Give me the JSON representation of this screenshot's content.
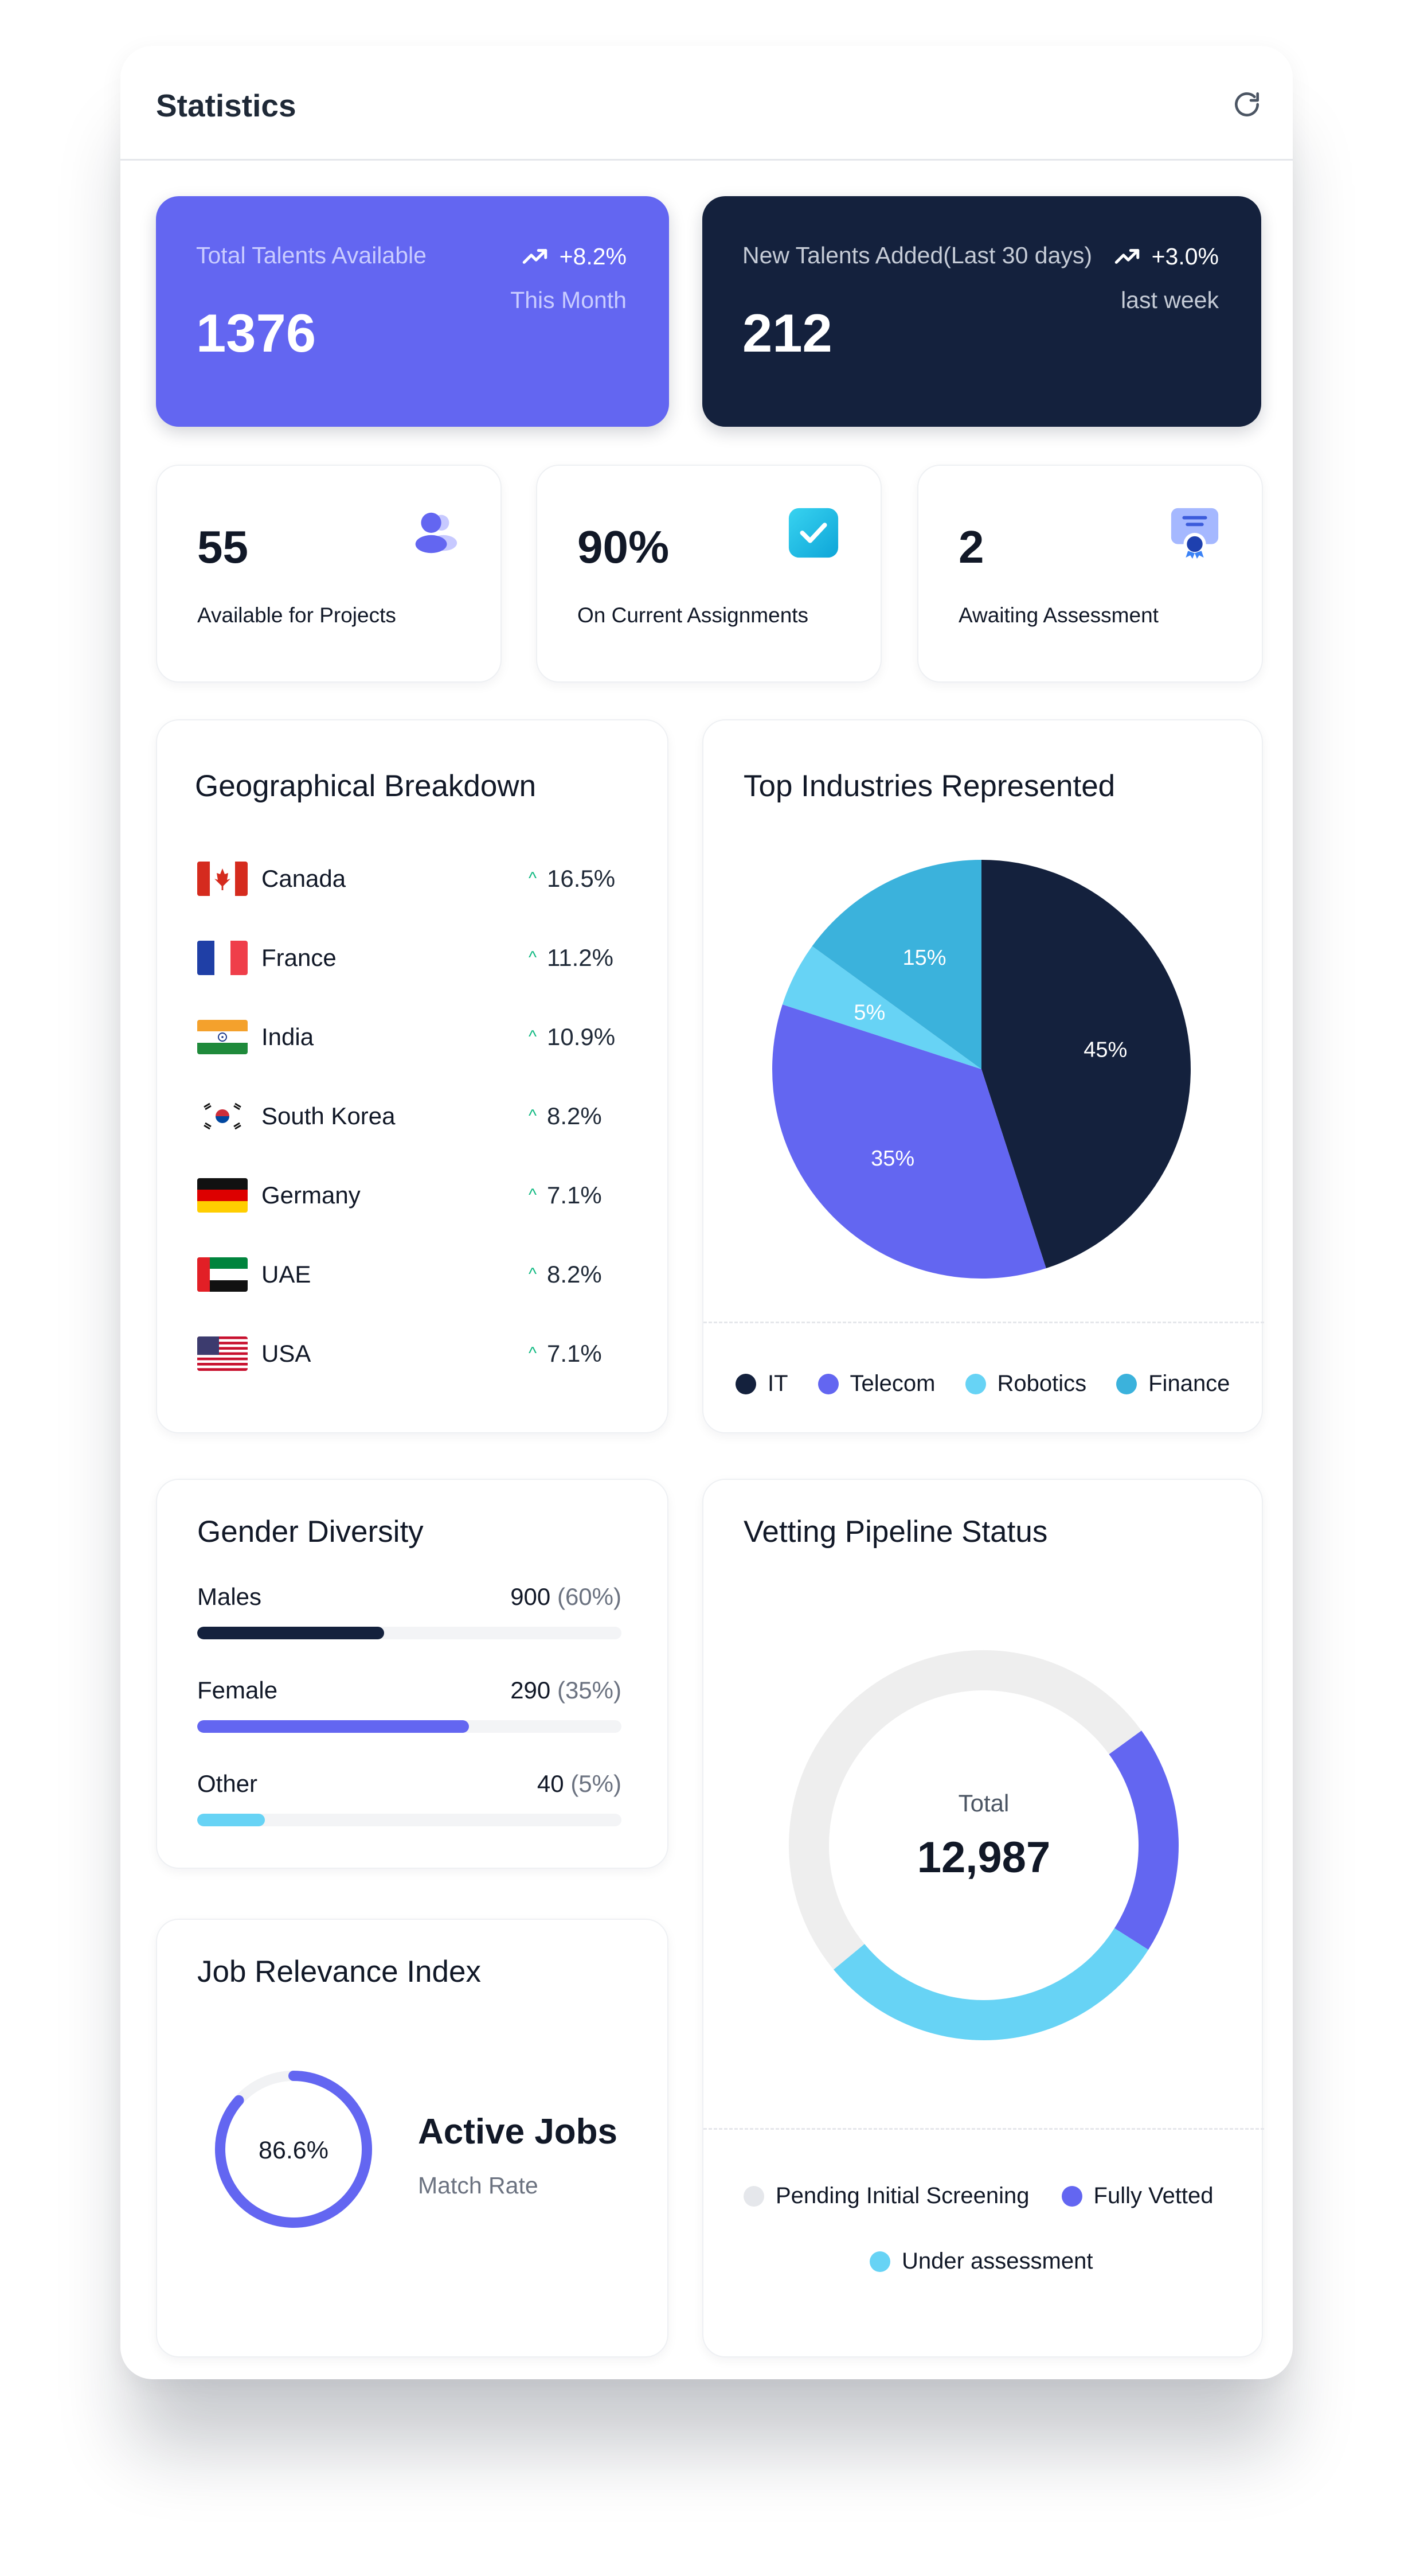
{
  "header": {
    "title": "Statistics",
    "refresh_icon": "refresh-icon"
  },
  "summary": [
    {
      "label": "Total Talents Available",
      "value": "1376",
      "delta": "+8.2%",
      "period": "This Month",
      "bg": "#6366f1",
      "icon": "trending-up-icon"
    },
    {
      "label": "New Talents Added(Last 30 days)",
      "value": "212",
      "delta": "+3.0%",
      "period": "last week",
      "bg": "#14213d",
      "icon": "trending-up-icon"
    }
  ],
  "stats": [
    {
      "value": "55",
      "label": "Available for Projects",
      "icon": "users-icon"
    },
    {
      "value": "90%",
      "label": "On Current Assignments",
      "icon": "check-badge-icon"
    },
    {
      "value": "2",
      "label": "Awaiting Assessment",
      "icon": "certificate-icon"
    }
  ],
  "geo": {
    "title": "Geographical Breakdown",
    "rows": [
      {
        "country": "Canada",
        "pct": "16.5%",
        "flag": "canada-flag-icon"
      },
      {
        "country": "France",
        "pct": "11.2%",
        "flag": "france-flag-icon"
      },
      {
        "country": "India",
        "pct": "10.9%",
        "flag": "india-flag-icon"
      },
      {
        "country": "South Korea",
        "pct": "8.2%",
        "flag": "south-korea-flag-icon"
      },
      {
        "country": "Germany",
        "pct": "7.1%",
        "flag": "germany-flag-icon"
      },
      {
        "country": "UAE",
        "pct": "8.2%",
        "flag": "uae-flag-icon"
      },
      {
        "country": "USA",
        "pct": "7.1%",
        "flag": "usa-flag-icon"
      }
    ]
  },
  "industries": {
    "title": "Top Industries Represented",
    "legend": [
      {
        "name": "IT",
        "color": "#14213d"
      },
      {
        "name": "Telecom",
        "color": "#6366f1"
      },
      {
        "name": "Robotics",
        "color": "#67d3f5"
      },
      {
        "name": "Finance",
        "color": "#3bb2dc"
      }
    ]
  },
  "gender": {
    "title": "Gender Diversity",
    "rows": [
      {
        "label": "Males",
        "count": "900",
        "pct": "(60%)",
        "fill": 0.44,
        "color": "#14213d"
      },
      {
        "label": "Female",
        "count": "290",
        "pct": "(35%)",
        "fill": 0.64,
        "color": "#6366f1"
      },
      {
        "label": "Other",
        "count": "40",
        "pct": "(5%)",
        "fill": 0.16,
        "color": "#67d3f5"
      }
    ]
  },
  "relevance": {
    "title": "Job Relevance Index",
    "value": "86.6%",
    "fraction": 0.866,
    "heading": "Active Jobs",
    "subheading": "Match Rate"
  },
  "pipeline": {
    "title": "Vetting Pipeline Status",
    "total_label": "Total",
    "total_value": "12,987",
    "legend": [
      {
        "name": "Pending Initial Screening",
        "color": "#e5e7eb"
      },
      {
        "name": "Fully Vetted",
        "color": "#6366f1"
      },
      {
        "name": "Under assessment",
        "color": "#67d3f5"
      }
    ]
  },
  "chart_data": [
    {
      "type": "pie",
      "title": "Top Industries Represented",
      "categories": [
        "IT",
        "Telecom",
        "Robotics",
        "Finance"
      ],
      "values": [
        45,
        35,
        5,
        15
      ],
      "labels": [
        "45%",
        "35%",
        "5%",
        "15%"
      ],
      "colors": [
        "#14213d",
        "#6366f1",
        "#67d3f5",
        "#3bb2dc"
      ],
      "legend": "bottom"
    },
    {
      "type": "pie",
      "title": "Vetting Pipeline Status",
      "categories": [
        "Pending Initial Screening",
        "Fully Vetted",
        "Under assessment"
      ],
      "values": [
        51,
        19,
        30
      ],
      "colors": [
        "#eeeeee",
        "#6366f1",
        "#67d3f5"
      ],
      "legend": "bottom"
    }
  ]
}
